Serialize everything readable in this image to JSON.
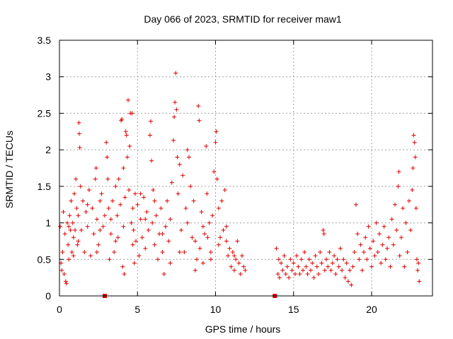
{
  "chart_data": {
    "type": "scatter",
    "title": "Day 066 of 2023, SRMTID for receiver maw1",
    "xlabel": "GPS time / hours",
    "ylabel": "SRMTID / TECUs",
    "xlim": [
      0,
      23.9
    ],
    "ylim": [
      0,
      3.5
    ],
    "xticks": [
      0,
      5,
      10,
      15,
      20
    ],
    "yticks": [
      0,
      0.5,
      1,
      1.5,
      2,
      2.5,
      3,
      3.5
    ],
    "xtick_labels": [
      "0",
      "5",
      "10",
      "15",
      "20"
    ],
    "ytick_labels": [
      "0",
      "0.5",
      "1",
      "1.5",
      "2",
      "2.5",
      "3",
      "3.5"
    ],
    "grid": true,
    "marker": "+",
    "series": [
      {
        "name": "SRMTID",
        "color": "#e00000",
        "points": [
          [
            0.05,
            0.95
          ],
          [
            0.1,
            0.45
          ],
          [
            0.15,
            0.35
          ],
          [
            0.2,
            0.6
          ],
          [
            0.25,
            1.15
          ],
          [
            0.3,
            0.3
          ],
          [
            0.35,
            0.85
          ],
          [
            0.4,
            0.2
          ],
          [
            0.45,
            0.17
          ],
          [
            0.5,
            1.0
          ],
          [
            0.55,
            0.7
          ],
          [
            0.6,
            0.5
          ],
          [
            0.65,
            1.1
          ],
          [
            0.7,
            0.9
          ],
          [
            0.75,
            1.3
          ],
          [
            0.8,
            0.6
          ],
          [
            0.85,
            1.0
          ],
          [
            0.9,
            0.8
          ],
          [
            0.95,
            1.4
          ],
          [
            1.0,
            0.9
          ],
          [
            1.05,
            1.6
          ],
          [
            1.1,
            1.2
          ],
          [
            1.15,
            0.7
          ],
          [
            1.2,
            1.1
          ],
          [
            1.25,
            2.37
          ],
          [
            1.27,
            2.22
          ],
          [
            1.3,
            2.03
          ],
          [
            1.35,
            1.5
          ],
          [
            1.4,
            0.9
          ],
          [
            1.5,
            1.3
          ],
          [
            1.6,
            0.6
          ],
          [
            1.7,
            1.15
          ],
          [
            1.8,
            0.95
          ],
          [
            1.9,
            1.45
          ],
          [
            2.0,
            0.55
          ],
          [
            2.1,
            1.2
          ],
          [
            2.2,
            0.85
          ],
          [
            2.3,
            1.6
          ],
          [
            2.35,
            1.75
          ],
          [
            2.4,
            1.05
          ],
          [
            2.5,
            0.7
          ],
          [
            2.6,
            1.3
          ],
          [
            2.7,
            1.4
          ],
          [
            2.8,
            0.95
          ],
          [
            2.9,
            1.1
          ],
          [
            3.0,
            2.1
          ],
          [
            3.05,
            1.9
          ],
          [
            3.1,
            1.6
          ],
          [
            3.15,
            1.2
          ],
          [
            3.2,
            0.5
          ],
          [
            3.3,
            0.85
          ],
          [
            3.4,
            1.3
          ],
          [
            3.5,
            0.6
          ],
          [
            3.6,
            1.5
          ],
          [
            3.7,
            1.1
          ],
          [
            3.75,
            0.8
          ],
          [
            3.8,
            1.6
          ],
          [
            3.9,
            1.25
          ],
          [
            3.95,
            2.4
          ],
          [
            4.0,
            2.42
          ],
          [
            4.05,
            0.4
          ],
          [
            4.1,
            1.75
          ],
          [
            4.15,
            0.3
          ],
          [
            4.2,
            1.35
          ],
          [
            4.25,
            2.25
          ],
          [
            4.3,
            2.2
          ],
          [
            4.35,
            1.9
          ],
          [
            4.4,
            2.68
          ],
          [
            4.45,
            1.45
          ],
          [
            4.5,
            2.05
          ],
          [
            4.55,
            2.5
          ],
          [
            4.6,
            1.0
          ],
          [
            4.65,
            2.5
          ],
          [
            4.7,
            1.2
          ],
          [
            4.75,
            0.9
          ],
          [
            4.8,
            0.45
          ],
          [
            4.85,
            1.4
          ],
          [
            4.9,
            0.75
          ],
          [
            5.0,
            1.25
          ],
          [
            5.1,
            0.55
          ],
          [
            5.2,
            1.05
          ],
          [
            5.3,
            0.8
          ],
          [
            5.4,
            1.35
          ],
          [
            5.5,
            0.65
          ],
          [
            5.6,
            1.15
          ],
          [
            5.7,
            0.9
          ],
          [
            5.8,
            2.2
          ],
          [
            5.85,
            2.39
          ],
          [
            5.9,
            1.85
          ],
          [
            5.95,
            1.0
          ],
          [
            6.0,
            1.45
          ],
          [
            6.1,
            0.7
          ],
          [
            6.2,
            1.1
          ],
          [
            6.3,
            0.5
          ],
          [
            6.4,
            0.85
          ],
          [
            6.5,
            1.2
          ],
          [
            6.6,
            0.6
          ],
          [
            6.7,
            0.3
          ],
          [
            6.8,
            0.95
          ],
          [
            6.9,
            1.3
          ],
          [
            7.0,
            0.75
          ],
          [
            7.1,
            0.45
          ],
          [
            7.2,
            1.55
          ],
          [
            7.3,
            2.13
          ],
          [
            7.35,
            2.45
          ],
          [
            7.4,
            2.65
          ],
          [
            7.45,
            3.05
          ],
          [
            7.5,
            2.55
          ],
          [
            7.55,
            1.9
          ],
          [
            7.6,
            1.4
          ],
          [
            7.7,
            1.8
          ],
          [
            7.8,
            0.9
          ],
          [
            7.9,
            1.65
          ],
          [
            8.0,
            0.6
          ],
          [
            8.1,
            1.2
          ],
          [
            8.2,
            2.0
          ],
          [
            8.3,
            1.9
          ],
          [
            8.4,
            1.5
          ],
          [
            8.5,
            0.8
          ],
          [
            8.6,
            1.3
          ],
          [
            8.7,
            0.35
          ],
          [
            8.8,
            0.5
          ],
          [
            8.9,
            2.6
          ],
          [
            8.95,
            2.4
          ],
          [
            9.0,
            0.65
          ],
          [
            9.1,
            1.15
          ],
          [
            9.2,
            0.45
          ],
          [
            9.3,
            0.85
          ],
          [
            9.4,
            2.05
          ],
          [
            9.45,
            1.4
          ],
          [
            9.5,
            0.8
          ],
          [
            9.6,
            1.0
          ],
          [
            9.7,
            0.6
          ],
          [
            9.8,
            1.1
          ],
          [
            9.9,
            1.7
          ],
          [
            10.0,
            2.1
          ],
          [
            10.05,
            2.25
          ],
          [
            10.1,
            1.6
          ],
          [
            10.2,
            1.2
          ],
          [
            10.3,
            0.8
          ],
          [
            10.4,
            1.3
          ],
          [
            10.5,
            0.9
          ],
          [
            10.6,
            1.45
          ],
          [
            10.7,
            0.75
          ],
          [
            10.8,
            0.55
          ],
          [
            10.9,
            0.65
          ],
          [
            11.0,
            0.4
          ],
          [
            11.1,
            0.6
          ],
          [
            11.2,
            0.35
          ],
          [
            11.3,
            0.5
          ],
          [
            11.4,
            0.75
          ],
          [
            11.5,
            0.45
          ],
          [
            11.6,
            0.3
          ],
          [
            11.7,
            0.55
          ],
          [
            11.8,
            0.4
          ],
          [
            11.9,
            0.35
          ],
          [
            0.6,
            0.95
          ],
          [
            0.9,
            0.55
          ],
          [
            1.2,
            0.75
          ],
          [
            1.8,
            1.25
          ],
          [
            2.4,
            0.6
          ],
          [
            2.6,
            0.9
          ],
          [
            3.3,
            1.05
          ],
          [
            3.6,
            0.75
          ],
          [
            4.1,
            0.95
          ],
          [
            4.7,
            0.7
          ],
          [
            5.2,
            1.4
          ],
          [
            5.5,
            1.05
          ],
          [
            6.1,
            1.3
          ],
          [
            6.6,
            0.85
          ],
          [
            7.1,
            1.05
          ],
          [
            7.7,
            0.6
          ],
          [
            8.2,
            1.0
          ],
          [
            8.7,
            0.75
          ],
          [
            9.2,
            0.95
          ],
          [
            9.7,
            0.5
          ],
          [
            10.2,
            0.7
          ],
          [
            10.7,
            0.95
          ],
          [
            11.2,
            0.55
          ],
          [
            13.9,
            0.65
          ],
          [
            14.0,
            0.3
          ],
          [
            14.05,
            0.5
          ],
          [
            14.1,
            0.25
          ],
          [
            14.2,
            0.45
          ],
          [
            14.3,
            0.35
          ],
          [
            14.4,
            0.55
          ],
          [
            14.5,
            0.3
          ],
          [
            14.6,
            0.4
          ],
          [
            14.7,
            0.25
          ],
          [
            14.8,
            0.5
          ],
          [
            14.9,
            0.35
          ],
          [
            15.0,
            0.45
          ],
          [
            15.1,
            0.3
          ],
          [
            15.2,
            0.55
          ],
          [
            15.3,
            0.4
          ],
          [
            15.4,
            0.3
          ],
          [
            15.5,
            0.5
          ],
          [
            15.6,
            0.35
          ],
          [
            15.7,
            0.6
          ],
          [
            15.8,
            0.4
          ],
          [
            15.9,
            0.3
          ],
          [
            16.0,
            0.5
          ],
          [
            16.1,
            0.35
          ],
          [
            16.2,
            0.45
          ],
          [
            16.3,
            0.25
          ],
          [
            16.4,
            0.55
          ],
          [
            16.5,
            0.4
          ],
          [
            16.6,
            0.3
          ],
          [
            16.7,
            0.6
          ],
          [
            16.8,
            0.45
          ],
          [
            16.9,
            0.9
          ],
          [
            16.95,
            0.85
          ],
          [
            17.0,
            0.35
          ],
          [
            17.1,
            0.5
          ],
          [
            17.2,
            0.4
          ],
          [
            17.3,
            0.6
          ],
          [
            17.4,
            0.35
          ],
          [
            17.5,
            0.45
          ],
          [
            17.6,
            0.55
          ],
          [
            17.7,
            0.3
          ],
          [
            17.8,
            0.5
          ],
          [
            17.9,
            0.4
          ],
          [
            18.0,
            0.65
          ],
          [
            18.1,
            0.35
          ],
          [
            18.2,
            0.5
          ],
          [
            18.3,
            0.25
          ],
          [
            18.4,
            0.45
          ],
          [
            18.5,
            0.2
          ],
          [
            18.6,
            0.35
          ],
          [
            18.7,
            0.15
          ],
          [
            18.8,
            0.4
          ],
          [
            18.9,
            0.6
          ],
          [
            19.0,
            1.25
          ],
          [
            19.1,
            0.85
          ],
          [
            19.2,
            0.5
          ],
          [
            19.3,
            0.7
          ],
          [
            19.4,
            0.35
          ],
          [
            19.5,
            0.6
          ],
          [
            19.6,
            0.8
          ],
          [
            19.7,
            0.5
          ],
          [
            19.8,
            0.95
          ],
          [
            19.9,
            0.65
          ],
          [
            20.0,
            0.4
          ],
          [
            20.1,
            0.75
          ],
          [
            20.2,
            0.55
          ],
          [
            20.3,
            1.0
          ],
          [
            20.4,
            0.6
          ],
          [
            20.5,
            0.85
          ],
          [
            20.6,
            0.45
          ],
          [
            20.7,
            0.7
          ],
          [
            20.8,
            0.95
          ],
          [
            20.9,
            0.5
          ],
          [
            21.0,
            0.65
          ],
          [
            21.1,
            0.8
          ],
          [
            21.2,
            0.4
          ],
          [
            21.3,
            1.05
          ],
          [
            21.4,
            0.7
          ],
          [
            21.5,
            1.25
          ],
          [
            21.6,
            0.9
          ],
          [
            21.7,
            1.5
          ],
          [
            21.75,
            1.7
          ],
          [
            21.8,
            0.55
          ],
          [
            21.9,
            0.8
          ],
          [
            22.0,
            1.2
          ],
          [
            22.1,
            0.4
          ],
          [
            22.2,
            1.0
          ],
          [
            22.3,
            0.6
          ],
          [
            22.4,
            1.3
          ],
          [
            22.5,
            0.9
          ],
          [
            22.6,
            1.45
          ],
          [
            22.65,
            1.75
          ],
          [
            22.7,
            2.2
          ],
          [
            22.75,
            2.1
          ],
          [
            22.8,
            1.9
          ],
          [
            22.85,
            1.2
          ],
          [
            22.9,
            0.5
          ],
          [
            22.95,
            0.35
          ],
          [
            23.0,
            0.45
          ],
          [
            23.05,
            0.2
          ]
        ]
      }
    ],
    "data_gaps": [
      {
        "x": 2.9,
        "y": 0
      },
      {
        "x": 13.8,
        "y": 0
      }
    ]
  }
}
